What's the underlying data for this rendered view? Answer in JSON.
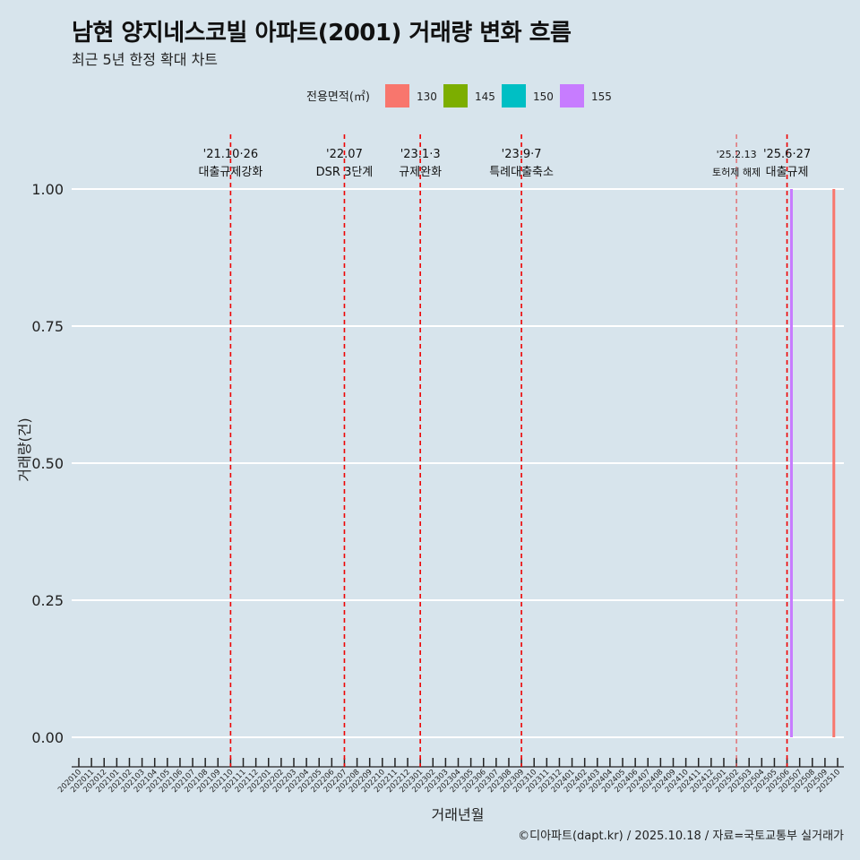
{
  "title": "남현 양지네스코빌 아파트(2001) 거래량 변화 흐름",
  "subtitle": "최근 5년 한정 확대 차트",
  "caption": "©디아파트(dapt.kr) / 2025.10.18 / 자료=국토교통부 실거래가",
  "chart_data": {
    "type": "bar",
    "xlabel": "거래년월",
    "ylabel": "거래량(건)",
    "ylim": [
      0,
      1
    ],
    "yticks": [
      "0.00",
      "0.25",
      "0.50",
      "0.75",
      "1.00"
    ],
    "legend_title": "전용면적(㎡)",
    "legend_position": "top",
    "legend": [
      {
        "name": "130",
        "color": "#f8766d"
      },
      {
        "name": "145",
        "color": "#7cae00"
      },
      {
        "name": "150",
        "color": "#00bfc4"
      },
      {
        "name": "155",
        "color": "#c77cff"
      }
    ],
    "categories": [
      "202010",
      "202011",
      "202012",
      "202101",
      "202102",
      "202103",
      "202104",
      "202105",
      "202106",
      "202107",
      "202108",
      "202109",
      "202110",
      "202111",
      "202112",
      "202201",
      "202202",
      "202203",
      "202204",
      "202205",
      "202206",
      "202207",
      "202208",
      "202209",
      "202210",
      "202211",
      "202212",
      "202301",
      "202302",
      "202303",
      "202304",
      "202305",
      "202306",
      "202307",
      "202308",
      "202309",
      "202310",
      "202311",
      "202312",
      "202401",
      "202402",
      "202403",
      "202404",
      "202405",
      "202406",
      "202407",
      "202408",
      "202409",
      "202410",
      "202411",
      "202412",
      "202501",
      "202502",
      "202503",
      "202504",
      "202505",
      "202506",
      "202507",
      "202508",
      "202509",
      "202510"
    ],
    "bars": [
      {
        "series": "155",
        "month": "202506",
        "month_offset": 0.35,
        "value": 1
      },
      {
        "series": "130",
        "month": "202509",
        "month_offset": 0.7,
        "value": 1
      }
    ],
    "annotations": [
      {
        "month": "202110",
        "date": "'21.10·26",
        "label": "대출규제강화"
      },
      {
        "month": "202207",
        "date": "'22.07",
        "label": "DSR 3단계"
      },
      {
        "month": "202301",
        "date": "'23.1·3",
        "label": "규제완화"
      },
      {
        "month": "202309",
        "date": "'23.9·7",
        "label": "특례대출축소"
      },
      {
        "month": "202502",
        "date": "'25.2.13",
        "label": "토허제 해제",
        "small": true
      },
      {
        "month": "202506",
        "date": "'25.6·27",
        "label": "대출규제"
      }
    ]
  }
}
